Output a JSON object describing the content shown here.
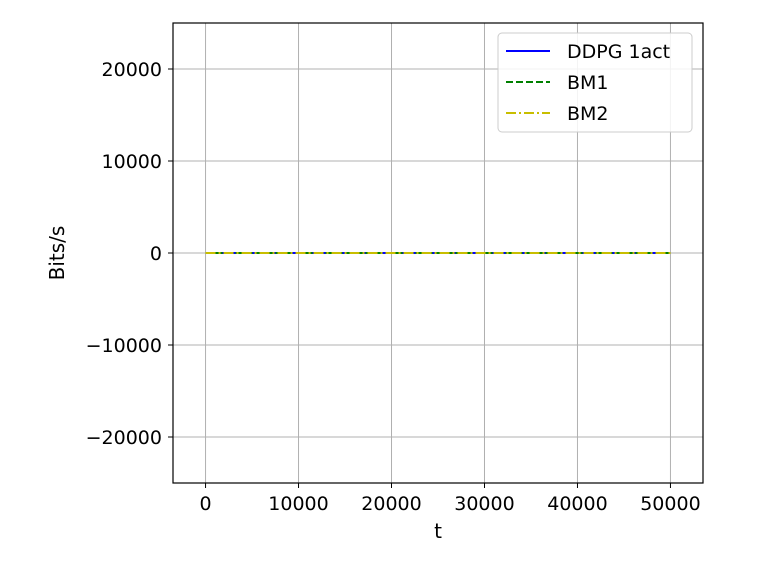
{
  "chart_data": {
    "type": "line",
    "title": "",
    "xlabel": "t",
    "ylabel": "Bits/s",
    "xlim": [
      -3500,
      53500
    ],
    "ylim": [
      -25000,
      25000
    ],
    "xticks": [
      0,
      10000,
      20000,
      30000,
      40000,
      50000
    ],
    "xtick_labels": [
      "0",
      "10000",
      "20000",
      "30000",
      "40000",
      "50000"
    ],
    "yticks": [
      -20000,
      -10000,
      0,
      10000,
      20000
    ],
    "ytick_labels": [
      "−20000",
      "−10000",
      "0",
      "10000",
      "20000"
    ],
    "grid": true,
    "legend_position": "top-right",
    "series": [
      {
        "name": "DDPG 1act",
        "color": "#0000ff",
        "style": "solid",
        "x": [
          0,
          50000
        ],
        "y": [
          0,
          0
        ]
      },
      {
        "name": "BM1",
        "color": "#008000",
        "style": "dashed",
        "x": [
          0,
          50000
        ],
        "y": [
          0,
          0
        ]
      },
      {
        "name": "BM2",
        "color": "#c8be00",
        "style": "dashdot",
        "x": [
          0,
          50000
        ],
        "y": [
          0,
          0
        ]
      }
    ]
  }
}
